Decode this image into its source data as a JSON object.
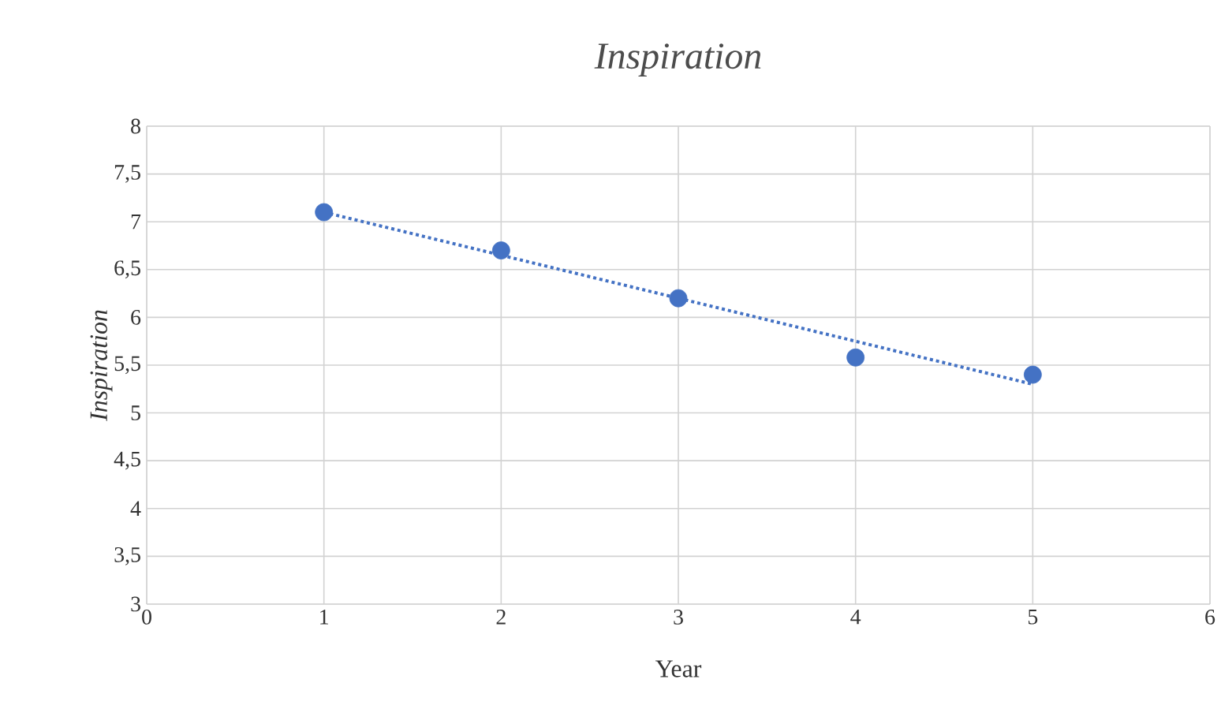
{
  "chart_data": {
    "type": "scatter",
    "title": "*Inspiration*",
    "xlabel": "Year",
    "ylabel": "*Inspiration*",
    "xlim": [
      0,
      6
    ],
    "xticks": [
      0,
      1,
      2,
      3,
      4,
      5,
      6
    ],
    "ylim": [
      3,
      8
    ],
    "yticks": [
      3,
      {
        "value": 3.5,
        "label": "3,5"
      },
      4,
      {
        "value": 4.5,
        "label": "4,5"
      },
      5,
      {
        "value": 5.5,
        "label": "5,5"
      },
      6,
      {
        "value": 6.5,
        "label": "6,5"
      },
      7,
      {
        "value": 7.5,
        "label": "7,5"
      },
      8
    ],
    "grid": true,
    "series": [
      {
        "type": "scatter",
        "color": "#4472c4",
        "marker": "circle",
        "x": [
          1,
          2,
          3,
          4,
          5
        ],
        "values": [
          7.1,
          6.7,
          6.2,
          5.58,
          5.4
        ]
      },
      {
        "type": "line",
        "color": "#4472c4",
        "line_style": "dotted",
        "marker": "none",
        "x": [
          1,
          5
        ],
        "values": [
          7.1,
          5.3
        ]
      }
    ]
  }
}
